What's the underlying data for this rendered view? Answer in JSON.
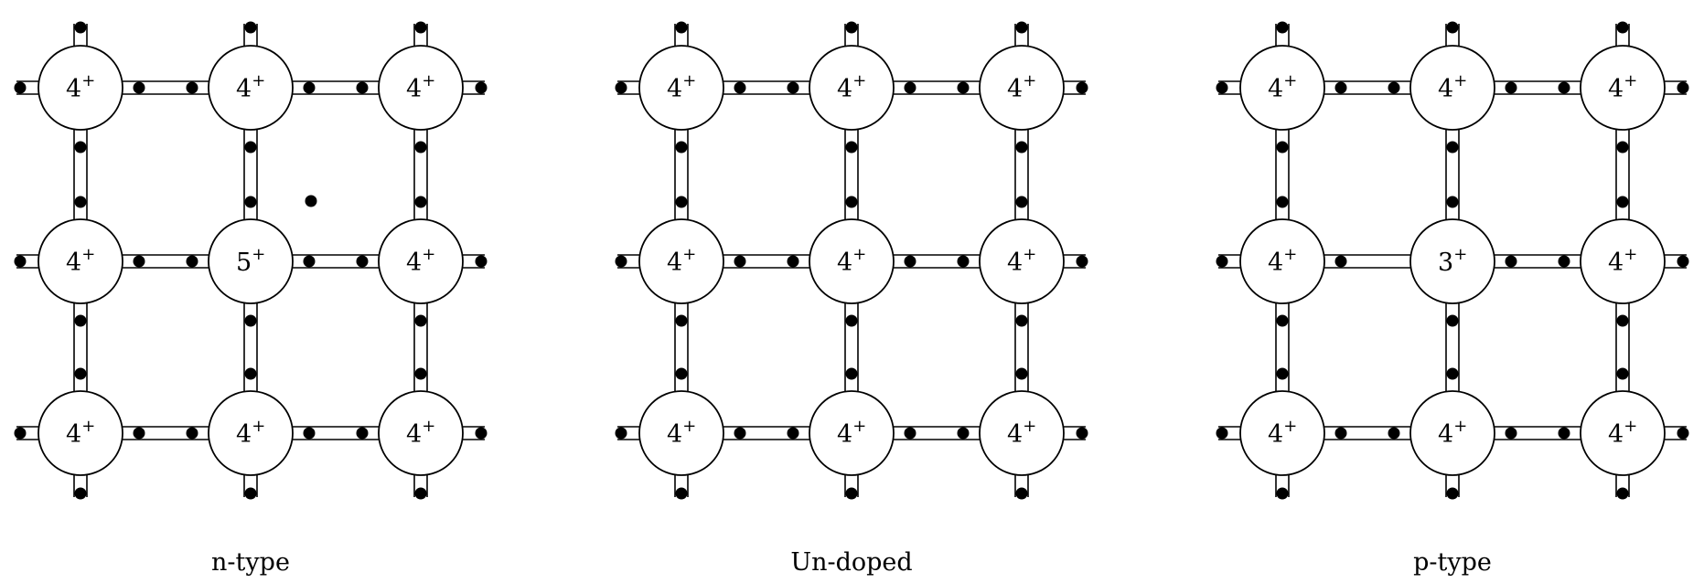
{
  "panels": [
    {
      "caption": "n-type",
      "atoms": [
        [
          "4",
          "4",
          "4"
        ],
        [
          "4",
          "5",
          "4"
        ],
        [
          "4",
          "4",
          "4"
        ]
      ],
      "charge_sign": "+",
      "extra_electron": true
    },
    {
      "caption": "Un-doped",
      "atoms": [
        [
          "4",
          "4",
          "4"
        ],
        [
          "4",
          "4",
          "4"
        ],
        [
          "4",
          "4",
          "4"
        ]
      ],
      "charge_sign": "+",
      "extra_electron": false
    },
    {
      "caption": "p-type",
      "atoms": [
        [
          "4",
          "4",
          "4"
        ],
        [
          "4",
          "3",
          "4"
        ],
        [
          "4",
          "4",
          "4"
        ]
      ],
      "charge_sign": "+",
      "missing_electron": {
        "row": 1,
        "col": 0,
        "bond": "right",
        "slot": 1
      }
    }
  ],
  "colors": {
    "line": "#000000",
    "atom_fill": "#ffffff",
    "background": "#ffffff"
  }
}
